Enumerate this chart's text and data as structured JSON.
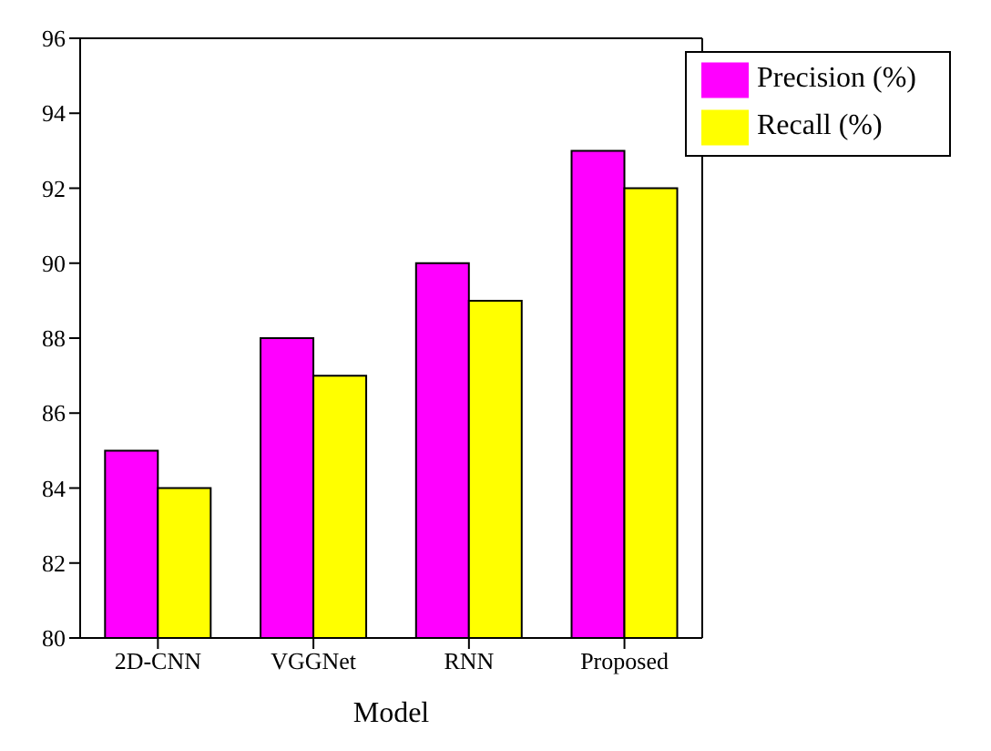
{
  "chart_data": {
    "type": "bar",
    "xlabel": "Model",
    "categories": [
      "2D-CNN",
      "VGGNet",
      "RNN",
      "Proposed"
    ],
    "series": [
      {
        "name": "Precision (%)",
        "color": "#ff00ff",
        "values": [
          85,
          88,
          90,
          93
        ]
      },
      {
        "name": "Recall (%)",
        "color": "#ffff00",
        "values": [
          84,
          87,
          89,
          92
        ]
      }
    ],
    "ylim": [
      80,
      96
    ],
    "yticks": [
      80,
      82,
      84,
      86,
      88,
      90,
      92,
      94,
      96
    ],
    "grid": false,
    "legend": "top right"
  }
}
